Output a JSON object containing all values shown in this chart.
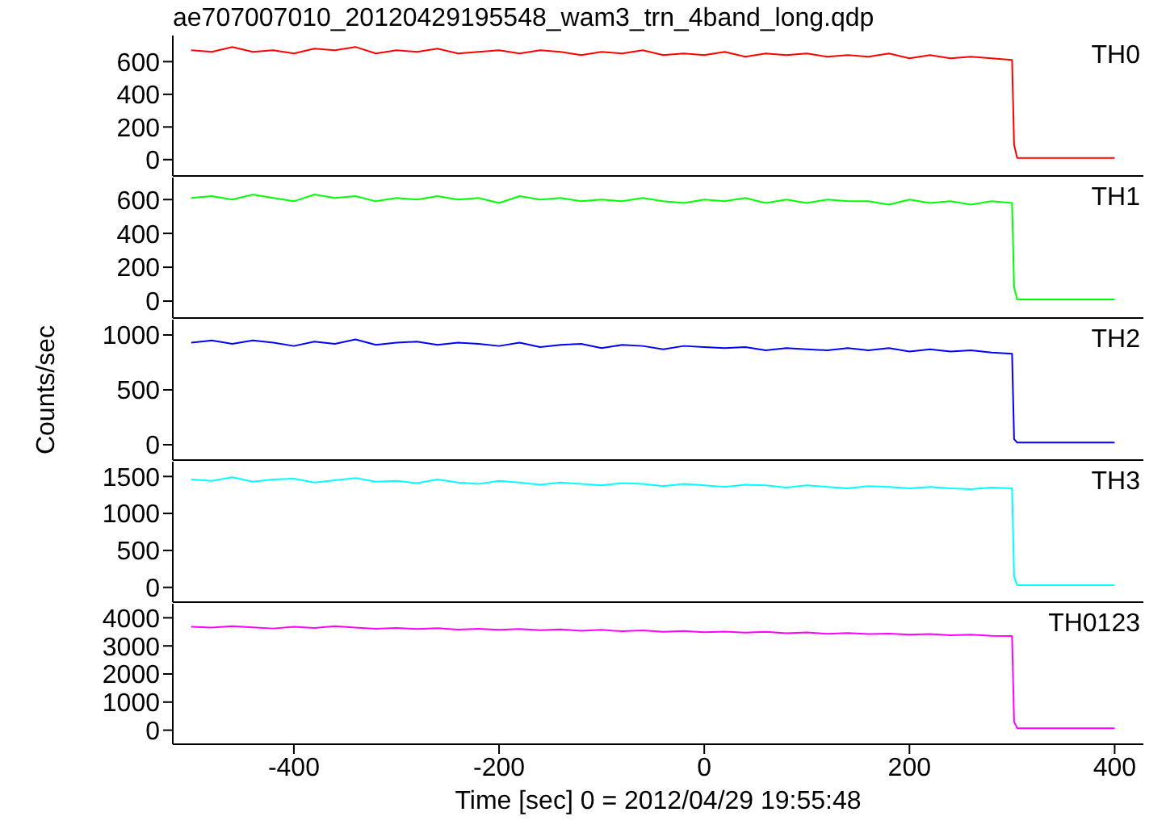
{
  "chart_data": [
    {
      "type": "line",
      "title": "ae707007010_20120429195548_wam3_trn_4band_long.qdp",
      "x": [
        -500,
        -480,
        -460,
        -440,
        -420,
        -400,
        -380,
        -360,
        -340,
        -320,
        -300,
        -280,
        -260,
        -240,
        -220,
        -200,
        -180,
        -160,
        -140,
        -120,
        -100,
        -80,
        -60,
        -40,
        -20,
        0,
        20,
        40,
        60,
        80,
        100,
        120,
        140,
        160,
        180,
        200,
        220,
        240,
        260,
        280,
        300,
        302,
        305,
        400
      ],
      "xlim": [
        -518,
        428
      ],
      "xticks": [
        -400,
        -200,
        0,
        200,
        400
      ],
      "ylim": [
        -100,
        760
      ],
      "yticks": [
        0,
        200,
        400,
        600
      ],
      "tick_labels": "y",
      "series": [
        {
          "name": "TH0",
          "color": "#ff0000",
          "values": [
            670,
            660,
            690,
            660,
            670,
            650,
            680,
            670,
            690,
            650,
            670,
            660,
            680,
            650,
            660,
            670,
            650,
            670,
            660,
            640,
            660,
            650,
            670,
            640,
            650,
            640,
            660,
            630,
            650,
            640,
            650,
            630,
            640,
            630,
            650,
            620,
            640,
            620,
            630,
            620,
            610,
            90,
            10,
            10
          ]
        }
      ]
    },
    {
      "type": "line",
      "x": [
        -500,
        -480,
        -460,
        -440,
        -420,
        -400,
        -380,
        -360,
        -340,
        -320,
        -300,
        -280,
        -260,
        -240,
        -220,
        -200,
        -180,
        -160,
        -140,
        -120,
        -100,
        -80,
        -60,
        -40,
        -20,
        0,
        20,
        40,
        60,
        80,
        100,
        120,
        140,
        160,
        180,
        200,
        220,
        240,
        260,
        280,
        300,
        302,
        305,
        400
      ],
      "xlim": [
        -518,
        428
      ],
      "xticks": [
        -400,
        -200,
        0,
        200,
        400
      ],
      "ylim": [
        -100,
        730
      ],
      "yticks": [
        0,
        200,
        400,
        600
      ],
      "tick_labels": "y",
      "series": [
        {
          "name": "TH1",
          "color": "#00ff00",
          "values": [
            610,
            620,
            600,
            630,
            610,
            590,
            630,
            610,
            620,
            590,
            610,
            600,
            620,
            600,
            610,
            580,
            620,
            600,
            610,
            590,
            600,
            590,
            610,
            590,
            580,
            600,
            590,
            610,
            580,
            600,
            580,
            600,
            590,
            590,
            570,
            600,
            580,
            590,
            570,
            590,
            580,
            80,
            10,
            10
          ]
        }
      ]
    },
    {
      "type": "line",
      "ylabel": "Counts/sec",
      "x": [
        -500,
        -480,
        -460,
        -440,
        -420,
        -400,
        -380,
        -360,
        -340,
        -320,
        -300,
        -280,
        -260,
        -240,
        -220,
        -200,
        -180,
        -160,
        -140,
        -120,
        -100,
        -80,
        -60,
        -40,
        -20,
        0,
        20,
        40,
        60,
        80,
        100,
        120,
        140,
        160,
        180,
        200,
        220,
        240,
        260,
        280,
        300,
        302,
        305,
        400
      ],
      "xlim": [
        -518,
        428
      ],
      "xticks": [
        -400,
        -200,
        0,
        200,
        400
      ],
      "ylim": [
        -140,
        1140
      ],
      "yticks": [
        0,
        500,
        1000
      ],
      "tick_labels": "y",
      "series": [
        {
          "name": "TH2",
          "color": "#0000ff",
          "values": [
            930,
            950,
            920,
            950,
            930,
            900,
            940,
            920,
            960,
            910,
            930,
            940,
            910,
            930,
            920,
            900,
            930,
            890,
            910,
            920,
            880,
            910,
            900,
            870,
            900,
            890,
            880,
            890,
            860,
            880,
            870,
            860,
            880,
            860,
            880,
            850,
            870,
            850,
            860,
            840,
            830,
            50,
            20,
            20
          ]
        }
      ]
    },
    {
      "type": "line",
      "x": [
        -500,
        -480,
        -460,
        -440,
        -420,
        -400,
        -380,
        -360,
        -340,
        -320,
        -300,
        -280,
        -260,
        -240,
        -220,
        -200,
        -180,
        -160,
        -140,
        -120,
        -100,
        -80,
        -60,
        -40,
        -20,
        0,
        20,
        40,
        60,
        80,
        100,
        120,
        140,
        160,
        180,
        200,
        220,
        240,
        260,
        280,
        300,
        302,
        305,
        400
      ],
      "xlim": [
        -518,
        428
      ],
      "xticks": [
        -400,
        -200,
        0,
        200,
        400
      ],
      "ylim": [
        -200,
        1700
      ],
      "yticks": [
        0,
        500,
        1000,
        1500
      ],
      "tick_labels": "y",
      "series": [
        {
          "name": "TH3",
          "color": "#00ffff",
          "values": [
            1460,
            1440,
            1490,
            1430,
            1460,
            1470,
            1420,
            1450,
            1480,
            1430,
            1440,
            1410,
            1460,
            1420,
            1400,
            1440,
            1420,
            1390,
            1420,
            1400,
            1380,
            1410,
            1400,
            1370,
            1400,
            1380,
            1360,
            1390,
            1380,
            1350,
            1380,
            1360,
            1340,
            1370,
            1360,
            1340,
            1360,
            1340,
            1330,
            1350,
            1340,
            150,
            30,
            30
          ]
        }
      ]
    },
    {
      "type": "line",
      "xlabel": "Time [sec] 0 = 2012/04/29 19:55:48",
      "x": [
        -500,
        -480,
        -460,
        -440,
        -420,
        -400,
        -380,
        -360,
        -340,
        -320,
        -300,
        -280,
        -260,
        -240,
        -220,
        -200,
        -180,
        -160,
        -140,
        -120,
        -100,
        -80,
        -60,
        -40,
        -20,
        0,
        20,
        40,
        60,
        80,
        100,
        120,
        140,
        160,
        180,
        200,
        220,
        240,
        260,
        280,
        300,
        302,
        305,
        400
      ],
      "xlim": [
        -518,
        428
      ],
      "xticks": [
        -400,
        -200,
        0,
        200,
        400
      ],
      "ylim": [
        -500,
        4500
      ],
      "yticks": [
        0,
        1000,
        2000,
        3000,
        4000
      ],
      "series": [
        {
          "name": "TH0123",
          "color": "#ff00ff",
          "values": [
            3680,
            3650,
            3700,
            3660,
            3620,
            3680,
            3640,
            3700,
            3650,
            3610,
            3640,
            3600,
            3630,
            3580,
            3610,
            3570,
            3600,
            3560,
            3590,
            3540,
            3570,
            3520,
            3550,
            3500,
            3530,
            3490,
            3510,
            3470,
            3500,
            3450,
            3480,
            3430,
            3460,
            3420,
            3440,
            3400,
            3420,
            3380,
            3400,
            3360,
            3350,
            300,
            70,
            70
          ]
        }
      ]
    }
  ]
}
